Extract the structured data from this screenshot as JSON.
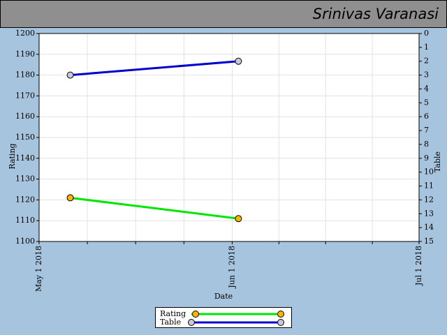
{
  "chart_data": {
    "type": "line",
    "title": "Srinivas Varanasi",
    "xlabel": "Date",
    "ylabel": "Rating",
    "y2label": "Table",
    "x": [
      "2018-05-06",
      "2018-06-02"
    ],
    "series": [
      {
        "name": "Rating",
        "color": "#00e600",
        "marker_color": "#ffb400",
        "values": [
          1121,
          1111
        ]
      },
      {
        "name": "Table",
        "color": "#0000cc",
        "marker_color": "#c8c8dc",
        "axis": "y2",
        "values": [
          3,
          2
        ]
      }
    ],
    "xlim": [
      "2018-05-01",
      "2018-07-01"
    ],
    "xticks": [
      {
        "value": "2018-05-01",
        "label": "May 1 2018"
      },
      {
        "value": "2018-06-01",
        "label": "Jun 1 2018"
      },
      {
        "value": "2018-07-01",
        "label": "Jul 1 2018"
      }
    ],
    "ylim": [
      1100,
      1200
    ],
    "yticks": [
      1100,
      1110,
      1120,
      1130,
      1140,
      1150,
      1160,
      1170,
      1180,
      1190,
      1200
    ],
    "y2lim": [
      15,
      0
    ],
    "y2ticks": [
      0,
      1,
      2,
      3,
      4,
      5,
      6,
      7,
      8,
      9,
      10,
      11,
      12,
      13,
      14,
      15
    ],
    "grid": true,
    "legend": "bottom"
  }
}
